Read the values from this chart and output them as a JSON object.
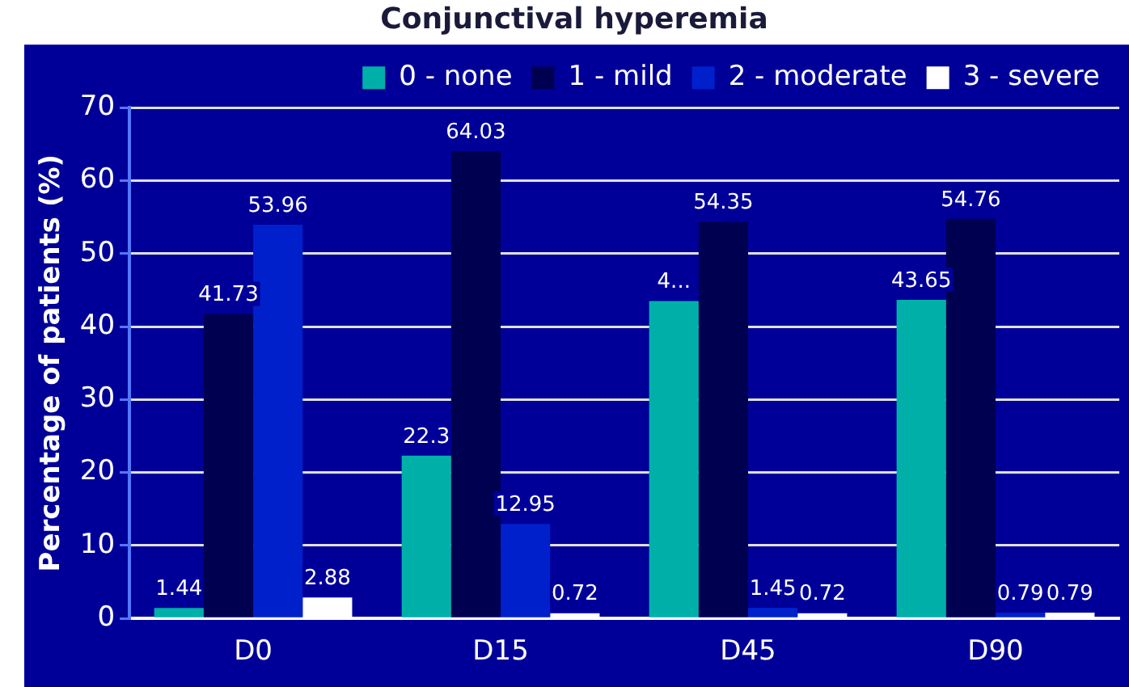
{
  "chart_data": {
    "type": "bar",
    "title": "Conjunctival hyperemia",
    "ylabel": "Percentage of patients (%)",
    "categories": [
      "D0",
      "D15",
      "D45",
      "D90"
    ],
    "series": [
      {
        "name": "0 - none",
        "color": "#00b0a8",
        "values": [
          1.44,
          22.3,
          43.5,
          43.65
        ],
        "value_labels": [
          "1.44",
          "22.3",
          "4...",
          "43.65"
        ]
      },
      {
        "name": "1 - mild",
        "color": "#000050",
        "values": [
          41.73,
          64.03,
          54.35,
          54.76
        ],
        "value_labels": [
          "41.73",
          "64.03",
          "54.35",
          "54.76"
        ]
      },
      {
        "name": "2 - moderate",
        "color": "#0020cc",
        "values": [
          53.96,
          12.95,
          1.45,
          0.79
        ],
        "value_labels": [
          "53.96",
          "12.95",
          "1.45",
          "0.79"
        ]
      },
      {
        "name": "3 - severe",
        "color": "#ffffff",
        "values": [
          2.88,
          0.72,
          0.72,
          0.79
        ],
        "value_labels": [
          "2.88",
          "0.72",
          "0.72",
          "0.79"
        ]
      }
    ],
    "ylim": [
      0,
      70
    ],
    "yticks": [
      0,
      10,
      20,
      30,
      40,
      50,
      60,
      70
    ],
    "grid": "y",
    "legend": "top right"
  }
}
